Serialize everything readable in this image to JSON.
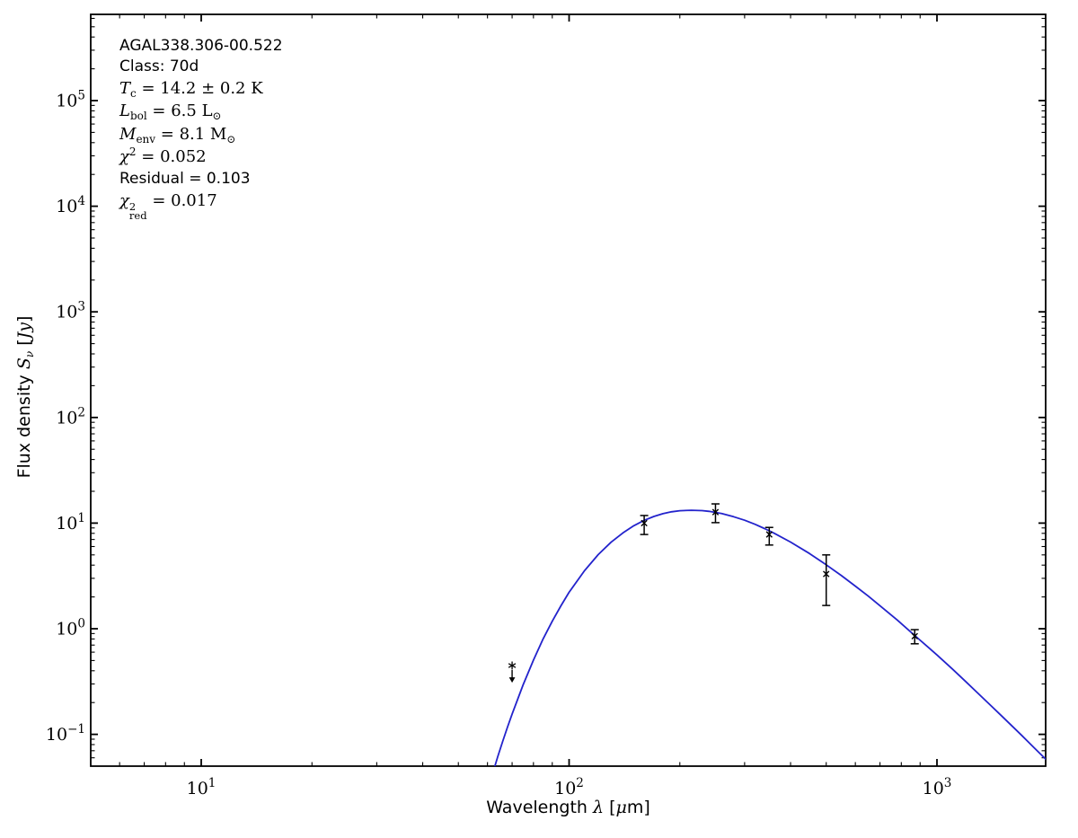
{
  "figure": {
    "annotation": {
      "lines": [
        {
          "font": "sans",
          "parts": [
            {
              "t": "AGAL338.306-00.522"
            }
          ]
        },
        {
          "font": "sans",
          "parts": [
            {
              "t": "Class: 70d"
            }
          ]
        },
        {
          "font": "math",
          "parts": [
            {
              "t": "T",
              "i": true
            },
            {
              "t": "c",
              "sub": true
            },
            {
              "t": " = 14.2 ± 0.2 K"
            }
          ]
        },
        {
          "font": "math",
          "parts": [
            {
              "t": "L",
              "i": true
            },
            {
              "t": "bol",
              "sub": true
            },
            {
              "t": " = 6.5 L"
            },
            {
              "t": "⊙",
              "sub": true
            }
          ]
        },
        {
          "font": "math",
          "parts": [
            {
              "t": "M",
              "i": true
            },
            {
              "t": "env",
              "sub": true
            },
            {
              "t": " = 8.1 M"
            },
            {
              "t": "⊙",
              "sub": true
            }
          ]
        },
        {
          "font": "math",
          "parts": [
            {
              "t": "χ",
              "i": true
            },
            {
              "t": "2",
              "sup": true
            },
            {
              "t": " = 0.052"
            }
          ]
        },
        {
          "font": "sans",
          "parts": [
            {
              "t": "Residual = 0.103"
            }
          ]
        },
        {
          "font": "math",
          "parts": [
            {
              "t": "χ",
              "i": true
            },
            {
              "stack": {
                "sup": "2",
                "sub": "red"
              }
            },
            {
              "t": " = 0.017"
            }
          ]
        }
      ]
    },
    "x_axis_label_parts": [
      {
        "t": "Wavelength ",
        "f": "sans"
      },
      {
        "t": "λ",
        "f": "math",
        "i": true
      },
      {
        "t": " [",
        "f": "sans"
      },
      {
        "t": "μ",
        "f": "math",
        "i": true
      },
      {
        "t": "m]",
        "f": "sans"
      }
    ],
    "y_axis_label_parts": [
      {
        "t": "Flux density ",
        "f": "sans"
      },
      {
        "t": "S",
        "f": "math",
        "i": true
      },
      {
        "t": "ν",
        "f": "math",
        "i": true,
        "sub": true
      },
      {
        "t": " [",
        "f": "sans"
      },
      {
        "t": "Jy",
        "f": "math",
        "i": true
      },
      {
        "t": "]",
        "f": "sans"
      }
    ]
  },
  "chart_data": {
    "type": "line",
    "title": "AGAL338.306-00.522",
    "source_name": "AGAL338.306-00.522",
    "classification": "70d",
    "fit_parameters": {
      "T_c": "14.2 ± 0.2 K",
      "L_bol": "6.5 L⊙",
      "M_env": "8.1 M⊙",
      "chi2": "0.052",
      "residual": "0.103",
      "chi2_red": "0.017"
    },
    "xlabel": "Wavelength λ [μm]",
    "ylabel": "Flux density Sν [Jy]",
    "x_scale": "log",
    "y_scale": "log",
    "xlim": [
      5,
      2000
    ],
    "ylim": [
      0.05,
      650000
    ],
    "grid": false,
    "x_major_tick_exponents": [
      1,
      2,
      3
    ],
    "y_major_tick_exponents": [
      -1,
      0,
      1,
      2,
      3,
      4,
      5
    ],
    "curve": {
      "name": "greybody-fit",
      "color": "#2323cc",
      "points": [
        [
          62,
          0.0428
        ],
        [
          64,
          0.0615
        ],
        [
          66,
          0.0859
        ],
        [
          68,
          0.117
        ],
        [
          70,
          0.156
        ],
        [
          75,
          0.294
        ],
        [
          80,
          0.504
        ],
        [
          85,
          0.801
        ],
        [
          90,
          1.178
        ],
        [
          95,
          1.647
        ],
        [
          100,
          2.213
        ],
        [
          110,
          3.53
        ],
        [
          120,
          5.03
        ],
        [
          130,
          6.59
        ],
        [
          140,
          8.07
        ],
        [
          150,
          9.44
        ],
        [
          160,
          10.62
        ],
        [
          170,
          11.55
        ],
        [
          180,
          12.29
        ],
        [
          190,
          12.79
        ],
        [
          200,
          13.1
        ],
        [
          215,
          13.23
        ],
        [
          230,
          13.14
        ],
        [
          240,
          12.93
        ],
        [
          260,
          12.3
        ],
        [
          280,
          11.49
        ],
        [
          300,
          10.64
        ],
        [
          320,
          9.74
        ],
        [
          340,
          8.88
        ],
        [
          360,
          8.06
        ],
        [
          400,
          6.62
        ],
        [
          450,
          5.16
        ],
        [
          500,
          4.03
        ],
        [
          550,
          3.18
        ],
        [
          600,
          2.53
        ],
        [
          650,
          2.04
        ],
        [
          700,
          1.65
        ],
        [
          780,
          1.21
        ],
        [
          870,
          0.863
        ],
        [
          950,
          0.66
        ],
        [
          1000,
          0.564
        ],
        [
          1100,
          0.417
        ],
        [
          1200,
          0.314
        ],
        [
          1300,
          0.24
        ],
        [
          1400,
          0.188
        ],
        [
          1500,
          0.149
        ],
        [
          1600,
          0.12
        ],
        [
          1700,
          0.0976
        ],
        [
          1800,
          0.0801
        ],
        [
          1900,
          0.0665
        ],
        [
          2000,
          0.0558
        ]
      ]
    },
    "points": [
      {
        "x": 160,
        "y": 10.0,
        "y_hi": 11.8,
        "y_lo": 7.8
      },
      {
        "x": 250,
        "y": 12.7,
        "y_hi": 15.2,
        "y_lo": 10.1
      },
      {
        "x": 350,
        "y": 7.8,
        "y_hi": 9.1,
        "y_lo": 6.2
      },
      {
        "x": 500,
        "y": 3.3,
        "y_hi": 5.0,
        "y_lo": 1.66
      },
      {
        "x": 870,
        "y": 0.85,
        "y_hi": 0.98,
        "y_lo": 0.72
      }
    ],
    "upper_limit": {
      "x": 70,
      "y": 0.448,
      "arrow_tip_y": 0.327
    },
    "marker_color": "#1a1a1a",
    "errorbar_color": "#000000",
    "upper_limit_marker_color": "#808080",
    "axis_color": "#000000"
  }
}
